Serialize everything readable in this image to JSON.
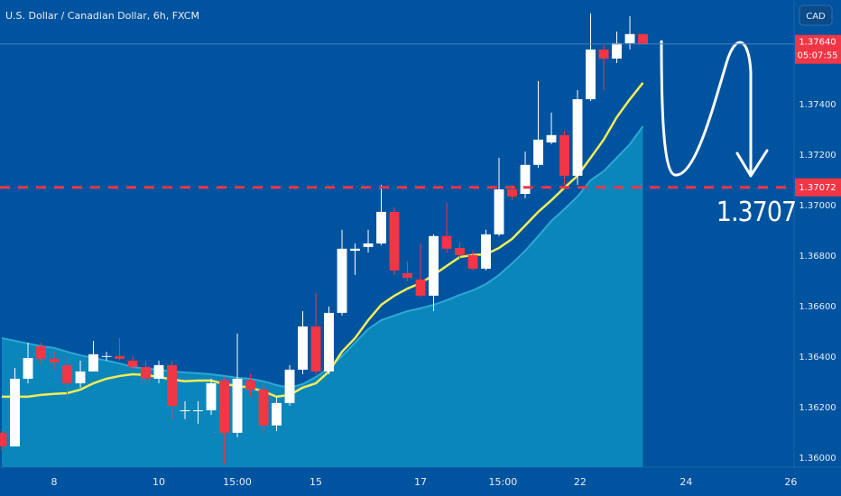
{
  "chart_data": {
    "type": "candlestick",
    "title": "U.S. Dollar / Canadian Dollar, 6h, FXCM",
    "currency": "CAD",
    "up_color": "#ffffff",
    "down_color": "#f23645",
    "candles": {
      "open": [
        1.361,
        1.36046,
        1.36314,
        1.36443,
        1.36393,
        1.36368,
        1.36296,
        1.36343,
        1.36404,
        1.36404,
        1.36386,
        1.36361,
        1.36314,
        1.36368,
        1.36189,
        1.36189,
        1.36189,
        1.36307,
        1.361,
        1.36307,
        1.36271,
        1.36129,
        1.36218,
        1.3635,
        1.36521,
        1.36343,
        1.36575,
        1.36821,
        1.36836,
        1.3685,
        1.36975,
        1.36732,
        1.36707,
        1.36643,
        1.36879,
        1.36832,
        1.36804,
        1.3675,
        1.36886,
        1.37064,
        1.37046,
        1.37161,
        1.3725,
        1.37279,
        1.37118,
        1.37421,
        1.37618,
        1.37582,
        1.37643,
        1.37679
      ],
      "high": [
        1.36107,
        1.36357,
        1.36457,
        1.36457,
        1.36421,
        1.36404,
        1.36386,
        1.36464,
        1.36421,
        1.36475,
        1.36404,
        1.36386,
        1.36386,
        1.36386,
        1.36225,
        1.36225,
        1.36314,
        1.36321,
        1.36493,
        1.36332,
        1.36296,
        1.36243,
        1.36368,
        1.36582,
        1.36654,
        1.366,
        1.36904,
        1.3685,
        1.36904,
        1.37082,
        1.36993,
        1.36779,
        1.3685,
        1.36886,
        1.37011,
        1.36857,
        1.36821,
        1.36904,
        1.37189,
        1.37082,
        1.37214,
        1.37493,
        1.37368,
        1.37296,
        1.37457,
        1.37761,
        1.37636,
        1.37689,
        1.3775,
        1.37679
      ],
      "low": [
        1.36029,
        1.36046,
        1.36296,
        1.36368,
        1.3635,
        1.36243,
        1.36279,
        1.36343,
        1.36386,
        1.36386,
        1.3635,
        1.36296,
        1.36296,
        1.36154,
        1.36154,
        1.36136,
        1.36171,
        1.35975,
        1.36082,
        1.36243,
        1.361,
        1.36107,
        1.36207,
        1.36332,
        1.36332,
        1.36332,
        1.36564,
        1.36725,
        1.36814,
        1.36843,
        1.36725,
        1.367,
        1.36636,
        1.36582,
        1.36814,
        1.36786,
        1.36743,
        1.36743,
        1.36879,
        1.37021,
        1.37029,
        1.3715,
        1.37243,
        1.37082,
        1.37082,
        1.37414,
        1.37457,
        1.37564,
        1.37618,
        1.3764
      ],
      "close": [
        1.36046,
        1.36314,
        1.36396,
        1.36393,
        1.36379,
        1.36296,
        1.36343,
        1.36411,
        1.36404,
        1.36393,
        1.36361,
        1.36314,
        1.36368,
        1.36207,
        1.36189,
        1.36189,
        1.36296,
        1.361,
        1.36314,
        1.36271,
        1.36129,
        1.36218,
        1.3635,
        1.36521,
        1.36343,
        1.36575,
        1.36829,
        1.36829,
        1.3685,
        1.36975,
        1.36743,
        1.36714,
        1.36643,
        1.36879,
        1.36829,
        1.36804,
        1.3675,
        1.36886,
        1.37064,
        1.37036,
        1.37161,
        1.37261,
        1.37279,
        1.37118,
        1.37421,
        1.37618,
        1.37582,
        1.37643,
        1.37679,
        1.3764
      ]
    },
    "moving_average": {
      "color": "#f3ee55",
      "values": [
        1.36243,
        1.36243,
        1.36243,
        1.3625,
        1.36254,
        1.36257,
        1.36271,
        1.36296,
        1.36314,
        1.36325,
        1.36332,
        1.36329,
        1.36321,
        1.36311,
        1.36304,
        1.36307,
        1.36307,
        1.36293,
        1.36286,
        1.36279,
        1.36264,
        1.36243,
        1.3625,
        1.36279,
        1.36296,
        1.36343,
        1.36421,
        1.36475,
        1.36546,
        1.36607,
        1.36643,
        1.36671,
        1.36693,
        1.36725,
        1.36761,
        1.36796,
        1.36804,
        1.36807,
        1.36832,
        1.36868,
        1.36921,
        1.36975,
        1.37021,
        1.37071,
        1.37118,
        1.37189,
        1.37261,
        1.3735,
        1.37421,
        1.37486
      ]
    },
    "band": {
      "color": "#0a86bb",
      "line_color": "#2ea8d4",
      "values": [
        1.36475,
        1.36464,
        1.36454,
        1.36443,
        1.36436,
        1.36421,
        1.36407,
        1.36396,
        1.36386,
        1.36375,
        1.36361,
        1.36354,
        1.3635,
        1.36343,
        1.36339,
        1.36336,
        1.36332,
        1.36325,
        1.36318,
        1.36314,
        1.36304,
        1.36289,
        1.36279,
        1.36293,
        1.36321,
        1.36357,
        1.36404,
        1.36457,
        1.36511,
        1.36546,
        1.36564,
        1.36582,
        1.36593,
        1.36607,
        1.36625,
        1.36646,
        1.36664,
        1.36689,
        1.36725,
        1.36771,
        1.36821,
        1.36879,
        1.36939,
        1.36986,
        1.37036,
        1.371,
        1.37136,
        1.37189,
        1.37243,
        1.37314
      ]
    },
    "xlim": [
      -0.14,
      60.55
    ],
    "xticks": [
      {
        "value": 4,
        "label": "8"
      },
      {
        "value": 12,
        "label": "10"
      },
      {
        "value": 18,
        "label": "15:00"
      },
      {
        "value": 24,
        "label": "15"
      },
      {
        "value": 32,
        "label": "17"
      },
      {
        "value": 38.3,
        "label": "15:00"
      },
      {
        "value": 44.2,
        "label": "22"
      },
      {
        "value": 52.3,
        "label": "24"
      },
      {
        "value": 60.3,
        "label": "26"
      }
    ],
    "ylim": [
      1.35964,
      1.37814
    ],
    "yticks": [
      {
        "value": 1.36,
        "label": "1.36000"
      },
      {
        "value": 1.362,
        "label": "1.36200"
      },
      {
        "value": 1.364,
        "label": "1.36400"
      },
      {
        "value": 1.366,
        "label": "1.36600"
      },
      {
        "value": 1.368,
        "label": "1.36800"
      },
      {
        "value": 1.37,
        "label": "1.37000"
      },
      {
        "value": 1.372,
        "label": "1.37200"
      },
      {
        "value": 1.374,
        "label": "1.37400"
      }
    ],
    "grid": false,
    "level": {
      "value": 1.37072,
      "label": "1.37072",
      "color": "#f23645"
    },
    "last_price": {
      "value": 1.3764,
      "label": "1.37640",
      "countdown": "05:07:55",
      "color": "#f23645"
    },
    "annotation": 1.3707
  }
}
